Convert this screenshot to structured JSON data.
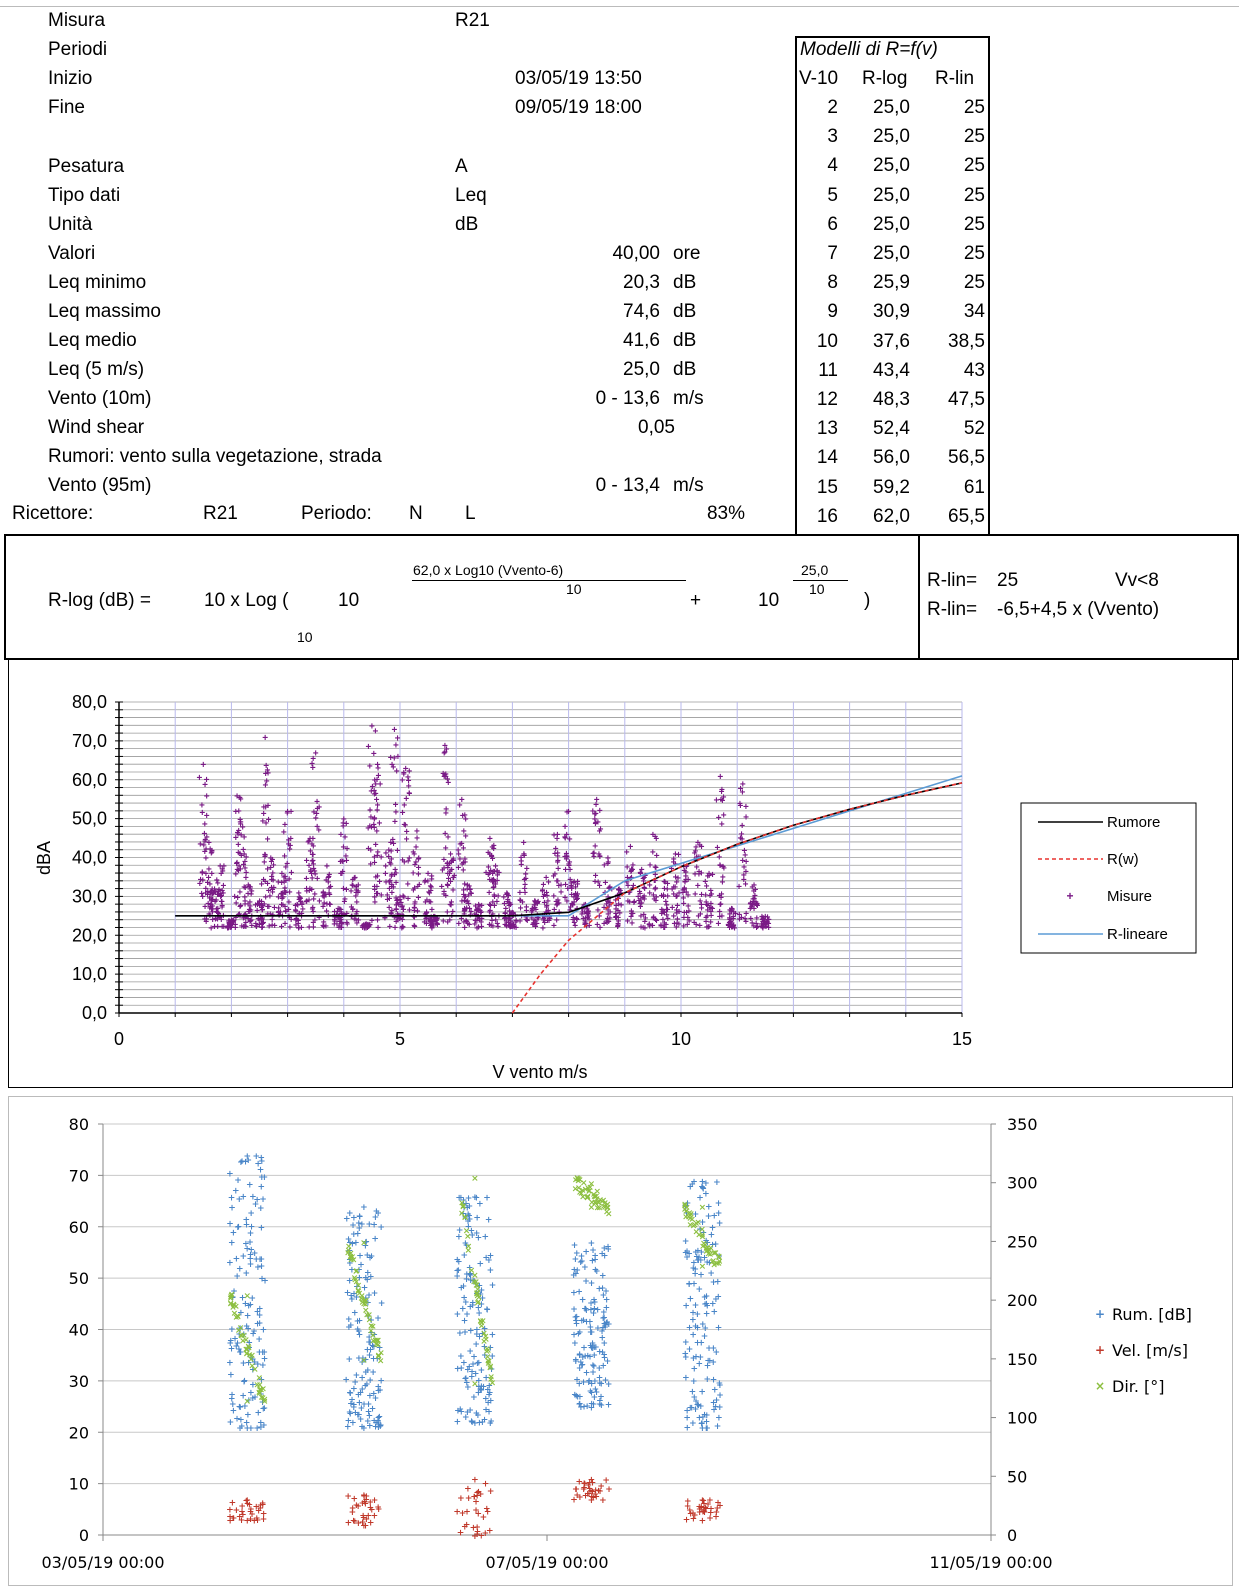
{
  "info": {
    "misura": {
      "label": "Misura",
      "value": "R21"
    },
    "periodi": {
      "label": "Periodi"
    },
    "inizio": {
      "label": "Inizio",
      "value": "03/05/19 13:50"
    },
    "fine": {
      "label": "Fine",
      "value": "09/05/19 18:00"
    },
    "pesatura": {
      "label": "Pesatura",
      "value": "A"
    },
    "tipo_dati": {
      "label": "Tipo dati",
      "value": "Leq"
    },
    "unita": {
      "label": "Unità",
      "value": "dB"
    },
    "valori": {
      "label": "Valori",
      "value": "40,00",
      "unit": "ore"
    },
    "leq_min": {
      "label": "Leq minimo",
      "value": "20,3",
      "unit": "dB"
    },
    "leq_max": {
      "label": "Leq massimo",
      "value": "74,6",
      "unit": "dB"
    },
    "leq_medio": {
      "label": "Leq medio",
      "value": "41,6",
      "unit": "dB"
    },
    "leq_5": {
      "label": "Leq (5 m/s)",
      "value": "25,0",
      "unit": "dB"
    },
    "vento10": {
      "label": "Vento (10m)",
      "value": "0 - 13,6",
      "unit": "m/s"
    },
    "shear": {
      "label": "Wind shear",
      "value": "0,05"
    },
    "rumori": {
      "label": "Rumori: vento sulla vegetazione, strada"
    },
    "vento95": {
      "label": "Vento (95m)",
      "value": "0 - 13,4",
      "unit": "m/s"
    },
    "ricettore": {
      "label": "Ricettore:",
      "value": "R21",
      "periodo_label": "Periodo:",
      "periodo_value": "N",
      "l": "L",
      "pct": "83%"
    }
  },
  "models": {
    "title": "Modelli di R=f(v)",
    "headers": [
      "V-10",
      "R-log",
      "R-lin"
    ],
    "rows": [
      [
        "2",
        "25,0",
        "25"
      ],
      [
        "3",
        "25,0",
        "25"
      ],
      [
        "4",
        "25,0",
        "25"
      ],
      [
        "5",
        "25,0",
        "25"
      ],
      [
        "6",
        "25,0",
        "25"
      ],
      [
        "7",
        "25,0",
        "25"
      ],
      [
        "8",
        "25,9",
        "25"
      ],
      [
        "9",
        "30,9",
        "34"
      ],
      [
        "10",
        "37,6",
        "38,5"
      ],
      [
        "11",
        "43,4",
        "43"
      ],
      [
        "12",
        "48,3",
        "47,5"
      ],
      [
        "13",
        "52,4",
        "52"
      ],
      [
        "14",
        "56,0",
        "56,5"
      ],
      [
        "15",
        "59,2",
        "61"
      ],
      [
        "16",
        "62,0",
        "65,5"
      ]
    ]
  },
  "formula": {
    "lhs": "R-log (dB) =",
    "log": "10 x Log (",
    "ten1": "10",
    "sub10": "10",
    "exp1_num": "62,0   x Log10 (Vvento-6)",
    "exp1_den": "10",
    "plus": "+",
    "ten2": "10",
    "exp2_num": "25,0",
    "exp2_den": "10",
    "close": ")",
    "rlin1_label": "R-lin=",
    "rlin1_value": "25",
    "rlin1_cond": "Vv<8",
    "rlin2_label": "R-lin=",
    "rlin2_value": "-6,5+4,5 x  (Vvento)"
  },
  "chart_data": [
    {
      "type": "scatter",
      "title": "",
      "xlabel": "V vento m/s",
      "ylabel": "dBA",
      "xlim": [
        0,
        15
      ],
      "ylim": [
        0,
        80
      ],
      "x_ticks": [
        "0",
        "5",
        "10",
        "15"
      ],
      "y_ticks": [
        "0,0",
        "10,0",
        "20,0",
        "30,0",
        "40,0",
        "50,0",
        "60,0",
        "70,0",
        "80,0"
      ],
      "grid": true,
      "legend_position": "right",
      "series": [
        {
          "name": "Rumore",
          "type": "line",
          "color": "#000000",
          "x": [
            1,
            2,
            3,
            4,
            5,
            6,
            7,
            8,
            9,
            10,
            11,
            12,
            13,
            14,
            15
          ],
          "values": [
            25,
            25,
            25,
            25,
            25,
            25,
            25,
            25.9,
            30.9,
            37.6,
            43.4,
            48.3,
            52.4,
            56.0,
            59.2
          ]
        },
        {
          "name": "R(w)",
          "type": "line",
          "dashed": true,
          "color": "#e8322e",
          "x": [
            7,
            7.5,
            8,
            9,
            10,
            11,
            12,
            13,
            14,
            15
          ],
          "values": [
            0,
            10,
            18.7,
            30.9,
            37.6,
            43.4,
            48.3,
            52.4,
            56.0,
            59.2
          ]
        },
        {
          "name": "Misure",
          "type": "scatter",
          "color": "#7a1a86",
          "points": [
            [
              1.5,
              64
            ],
            [
              1.6,
              44
            ],
            [
              1.7,
              32
            ],
            [
              1.8,
              38
            ],
            [
              2.0,
              24
            ],
            [
              2.1,
              56
            ],
            [
              2.2,
              48
            ],
            [
              2.3,
              33
            ],
            [
              2.5,
              29
            ],
            [
              2.6,
              71
            ],
            [
              2.7,
              40
            ],
            [
              2.9,
              36
            ],
            [
              3.0,
              52
            ],
            [
              3.2,
              31
            ],
            [
              3.4,
              45
            ],
            [
              3.5,
              67
            ],
            [
              3.7,
              38
            ],
            [
              3.9,
              27
            ],
            [
              4.0,
              50
            ],
            [
              4.2,
              35
            ],
            [
              4.4,
              23
            ],
            [
              4.5,
              74
            ],
            [
              4.6,
              64
            ],
            [
              4.8,
              42
            ],
            [
              4.9,
              73
            ],
            [
              5.0,
              30
            ],
            [
              5.1,
              63
            ],
            [
              5.3,
              47
            ],
            [
              5.5,
              36
            ],
            [
              5.6,
              25
            ],
            [
              5.8,
              69
            ],
            [
              5.9,
              41
            ],
            [
              6.1,
              55
            ],
            [
              6.2,
              33
            ],
            [
              6.4,
              28
            ],
            [
              6.6,
              45
            ],
            [
              6.7,
              38
            ],
            [
              6.9,
              31
            ],
            [
              7.0,
              26
            ],
            [
              7.2,
              44
            ],
            [
              7.4,
              29
            ],
            [
              7.6,
              35
            ],
            [
              7.8,
              46
            ],
            [
              8.0,
              52
            ],
            [
              8.1,
              34
            ],
            [
              8.3,
              28
            ],
            [
              8.5,
              55
            ],
            [
              8.7,
              40
            ],
            [
              8.9,
              32
            ],
            [
              9.1,
              43
            ],
            [
              9.3,
              37
            ],
            [
              9.5,
              46
            ],
            [
              9.7,
              34
            ],
            [
              9.9,
              41
            ],
            [
              10.1,
              38
            ],
            [
              10.3,
              44
            ],
            [
              10.5,
              36
            ],
            [
              10.7,
              61
            ],
            [
              10.9,
              27
            ],
            [
              11.1,
              59
            ],
            [
              11.3,
              33
            ],
            [
              11.5,
              25
            ]
          ]
        },
        {
          "name": "R-lineare",
          "type": "line",
          "color": "#5b9bd5",
          "x": [
            1,
            8,
            9,
            10,
            11,
            12,
            13,
            14,
            15
          ],
          "values": [
            25,
            25,
            34,
            38.5,
            43,
            47.5,
            52,
            56.5,
            61
          ]
        }
      ]
    },
    {
      "type": "scatter",
      "title": "",
      "x_ticks": [
        "03/05/19 00:00",
        "07/05/19 00:00",
        "11/05/19 00:00"
      ],
      "y_ticks_left": [
        "0",
        "10",
        "20",
        "30",
        "40",
        "50",
        "60",
        "70",
        "80"
      ],
      "y_ticks_right": [
        "0",
        "50",
        "100",
        "150",
        "200",
        "250",
        "300",
        "350"
      ],
      "ylim_left": [
        0,
        80
      ],
      "ylim_right": [
        0,
        350
      ],
      "grid": true,
      "legend_position": "right",
      "series": [
        {
          "name": "Rum. [dB]",
          "axis": "left",
          "color": "#4a86c8",
          "clusters": [
            {
              "day": 1.3,
              "min": 21,
              "max": 74
            },
            {
              "day": 2.35,
              "min": 21,
              "max": 64
            },
            {
              "day": 3.35,
              "min": 22,
              "max": 66
            },
            {
              "day": 4.4,
              "min": 25,
              "max": 57
            },
            {
              "day": 5.4,
              "min": 21,
              "max": 69
            }
          ]
        },
        {
          "name": "Vel. [m/s]",
          "axis": "left",
          "color": "#c0392b",
          "clusters": [
            {
              "day": 1.3,
              "min": 3,
              "max": 7
            },
            {
              "day": 2.35,
              "min": 2,
              "max": 8
            },
            {
              "day": 3.35,
              "min": 0,
              "max": 11
            },
            {
              "day": 4.4,
              "min": 7,
              "max": 11
            },
            {
              "day": 5.4,
              "min": 3,
              "max": 7
            }
          ]
        },
        {
          "name": "Dir. [°]",
          "axis": "right",
          "color": "#8cbf3f",
          "clusters": [
            {
              "day": 1.3,
              "min": 115,
              "max": 205
            },
            {
              "day": 2.35,
              "min": 150,
              "max": 250
            },
            {
              "day": 3.35,
              "min": 130,
              "max": 305
            },
            {
              "day": 4.4,
              "min": 280,
              "max": 300
            },
            {
              "day": 5.4,
              "min": 230,
              "max": 280
            }
          ]
        }
      ]
    }
  ]
}
